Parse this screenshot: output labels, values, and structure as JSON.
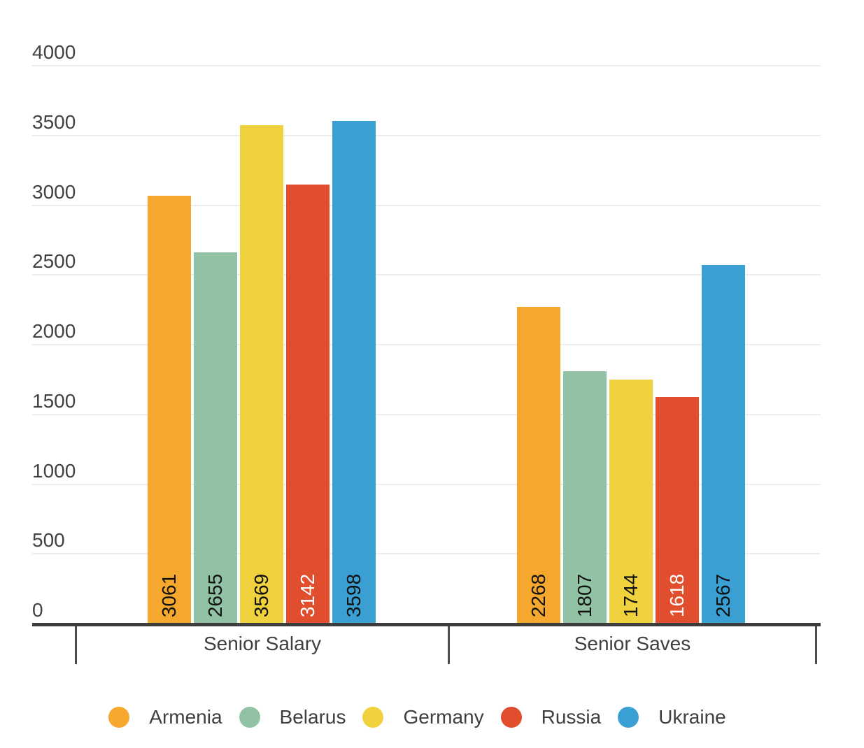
{
  "chart_data": {
    "type": "bar",
    "title": "",
    "categories": [
      "Senior Salary",
      "Senior Saves"
    ],
    "series": [
      {
        "name": "Armenia",
        "color": "#f6a72d",
        "label_color": "#111111",
        "values": [
          3061,
          2268
        ]
      },
      {
        "name": "Belarus",
        "color": "#90c2a3",
        "label_color": "#111111",
        "values": [
          2655,
          1807
        ]
      },
      {
        "name": "Germany",
        "color": "#efd23e",
        "label_color": "#111111",
        "values": [
          3569,
          1744
        ]
      },
      {
        "name": "Russia",
        "color": "#e04e2e",
        "label_color": "#ffffff",
        "values": [
          3142,
          1618
        ]
      },
      {
        "name": "Ukraine",
        "color": "#3a9fd3",
        "label_color": "#111111",
        "values": [
          3598,
          2567
        ]
      }
    ],
    "ylim": [
      0,
      4000
    ],
    "yticks": [
      0,
      500,
      1000,
      1500,
      2000,
      2500,
      3000,
      3500,
      4000
    ],
    "grid": true,
    "legend_position": "bottom",
    "bar_value_labels": "rotated-90-inside-base",
    "colors": {
      "grid_line": "#ededed",
      "axis_base_line": "#3d3d3d",
      "category_bracket_line": "#4c4c4c",
      "axis_text": "#424242",
      "category_text": "#3f3f3f",
      "legend_text": "#3f3f3f"
    }
  }
}
